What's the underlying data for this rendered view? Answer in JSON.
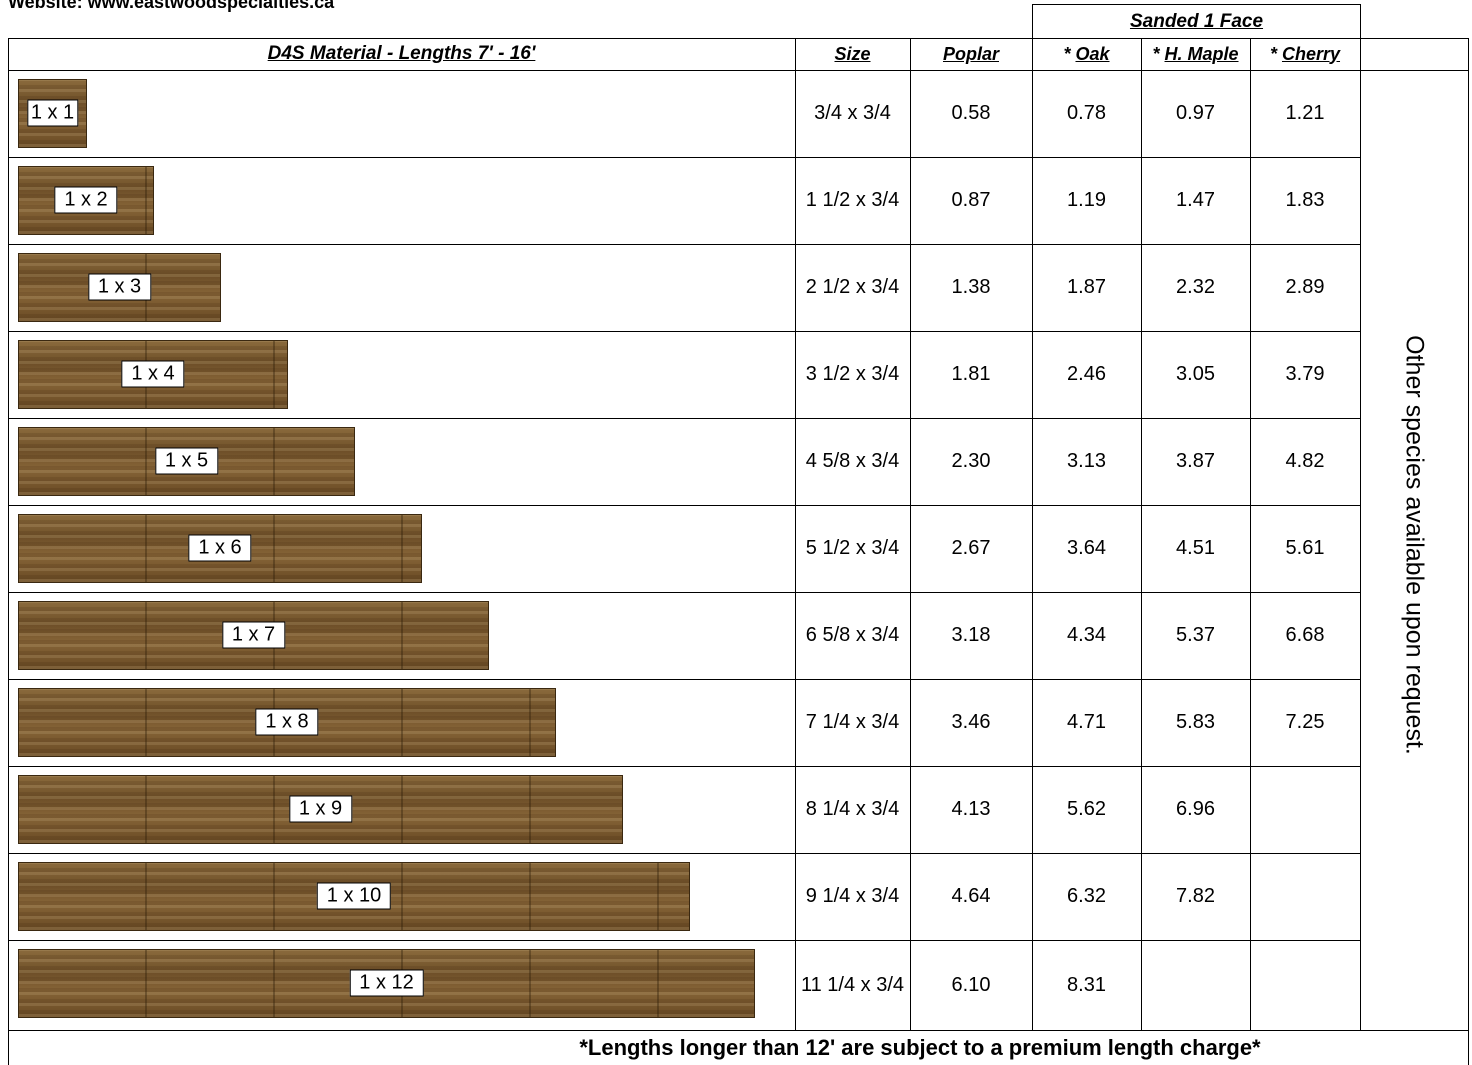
{
  "header": {
    "website": "Website: www.eastwoodspecialties.ca"
  },
  "table": {
    "title": "D4S Material - Lengths 7' - 16'",
    "group": "Sanded 1 Face",
    "columns": [
      {
        "name": "Size"
      },
      {
        "name": "Poplar"
      },
      {
        "prefix": "*",
        "name": "Oak"
      },
      {
        "prefix": "*",
        "name": "H. Maple"
      },
      {
        "prefix": "*",
        "name": "Cherry"
      }
    ],
    "rows": [
      [
        "1 x 1",
        "3/4 x 3/4",
        "0.58",
        "0.78",
        "0.97",
        "1.21"
      ],
      [
        "1 x 2",
        "1 1/2 x 3/4",
        "0.87",
        "1.19",
        "1.47",
        "1.83"
      ],
      [
        "1 x 3",
        "2 1/2 x 3/4",
        "1.38",
        "1.87",
        "2.32",
        "2.89"
      ],
      [
        "1 x 4",
        "3 1/2 x 3/4",
        "1.81",
        "2.46",
        "3.05",
        "3.79"
      ],
      [
        "1 x 5",
        "4 5/8 x 3/4",
        "2.30",
        "3.13",
        "3.87",
        "4.82"
      ],
      [
        "1 x 6",
        "5 1/2 x 3/4",
        "2.67",
        "3.64",
        "4.51",
        "5.61"
      ],
      [
        "1 x 7",
        "6 5/8 x 3/4",
        "3.18",
        "4.34",
        "5.37",
        "6.68"
      ],
      [
        "1 x 8",
        "7 1/4 x 3/4",
        "3.46",
        "4.71",
        "5.83",
        "7.25"
      ],
      [
        "1 x 9",
        "8 1/4 x 3/4",
        "4.13",
        "5.62",
        "6.96",
        null
      ],
      [
        "1 x 10",
        "9 1/4 x 3/4",
        "4.64",
        "6.32",
        "7.82",
        null
      ],
      [
        "1 x 12",
        "11 1/4 x 3/4",
        "6.10",
        "8.31",
        null,
        null
      ]
    ],
    "side_note": "Other species available upon request.",
    "footer": "*Lengths longer than 12' are subject to a premium length charge*"
  }
}
